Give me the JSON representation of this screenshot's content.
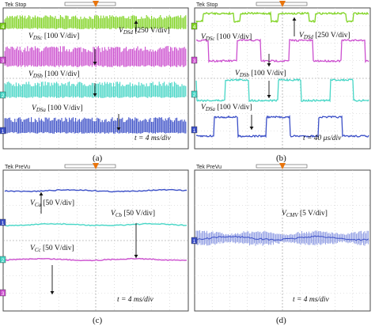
{
  "figure_captions": [
    "(a)",
    "(b)",
    "(c)",
    "(d)"
  ],
  "colors": {
    "background": "#ffffff",
    "frame": "#4a4a4a",
    "grid": "#c8c8c8",
    "header_bar": "#dcdcdc",
    "trigger_marker": "#e8740c",
    "green": "#7fd321",
    "magenta": "#cc4fcf",
    "cyan": "#46d6c6",
    "blue": "#3b4fc7"
  },
  "chart_data": [
    {
      "type": "line",
      "panel": "a",
      "header": "Tek Stop",
      "time_scale": "t = 4 ms/div",
      "channel_markers": [
        "4",
        "3",
        "2",
        "1"
      ],
      "series": [
        {
          "name": "V_DSd",
          "label_main": "V",
          "label_sub": "DSd",
          "label_rest": " [250 V/div]",
          "color_key": "green",
          "waveform": "dense-switching"
        },
        {
          "name": "V_DSc",
          "label_main": "V",
          "label_sub": "DSc",
          "label_rest": " [100 V/div]",
          "color_key": "magenta",
          "waveform": "dense-switching"
        },
        {
          "name": "V_DSb",
          "label_main": "V",
          "label_sub": "DSb",
          "label_rest": " [100 V/div]",
          "color_key": "cyan",
          "waveform": "dense-switching"
        },
        {
          "name": "V_DSa",
          "label_main": "V",
          "label_sub": "DSa",
          "label_rest": " [100 V/div]",
          "color_key": "blue",
          "waveform": "dense-switching"
        }
      ]
    },
    {
      "type": "line",
      "panel": "b",
      "header": "Tek Stop",
      "time_scale": "t = 40 μs/div",
      "channel_markers": [
        "4",
        "3",
        "2",
        "1"
      ],
      "series": [
        {
          "name": "V_DSd",
          "label_main": "V",
          "label_sub": "DSd",
          "label_rest": " [250 V/div]",
          "color_key": "green",
          "waveform": "pulses"
        },
        {
          "name": "V_DSc",
          "label_main": "V",
          "label_sub": "DSc",
          "label_rest": " [100 V/div]",
          "color_key": "magenta",
          "waveform": "pulses"
        },
        {
          "name": "V_DSb",
          "label_main": "V",
          "label_sub": "DSb",
          "label_rest": " [100 V/div]",
          "color_key": "cyan",
          "waveform": "pulses"
        },
        {
          "name": "V_DSa",
          "label_main": "V",
          "label_sub": "DSa",
          "label_rest": " [100 V/div]",
          "color_key": "blue",
          "waveform": "pulses"
        }
      ]
    },
    {
      "type": "line",
      "panel": "c",
      "header": "Tek PreVu",
      "time_scale": "t = 4 ms/div",
      "channel_markers": [
        "1",
        "2",
        "3"
      ],
      "series": [
        {
          "name": "V_Ca",
          "label_main": "V",
          "label_sub": "Ca",
          "label_rest": " [50 V/div]",
          "color_key": "blue",
          "waveform": "flat"
        },
        {
          "name": "V_Cb",
          "label_main": "V",
          "label_sub": "Cb",
          "label_rest": " [50 V/div]",
          "color_key": "cyan",
          "waveform": "flat"
        },
        {
          "name": "V_Cc",
          "label_main": "V",
          "label_sub": "Cc",
          "label_rest": " [50 V/div]",
          "color_key": "magenta",
          "waveform": "flat"
        }
      ]
    },
    {
      "type": "line",
      "panel": "d",
      "header": "Tek PreVu",
      "time_scale": "t = 4 ms/div",
      "channel_markers": [
        "1"
      ],
      "series": [
        {
          "name": "V_CMV",
          "label_main": "V",
          "label_sub": "CMV",
          "label_rest": " [5 V/div]",
          "color_key": "blue",
          "waveform": "noisy-band"
        }
      ]
    }
  ]
}
